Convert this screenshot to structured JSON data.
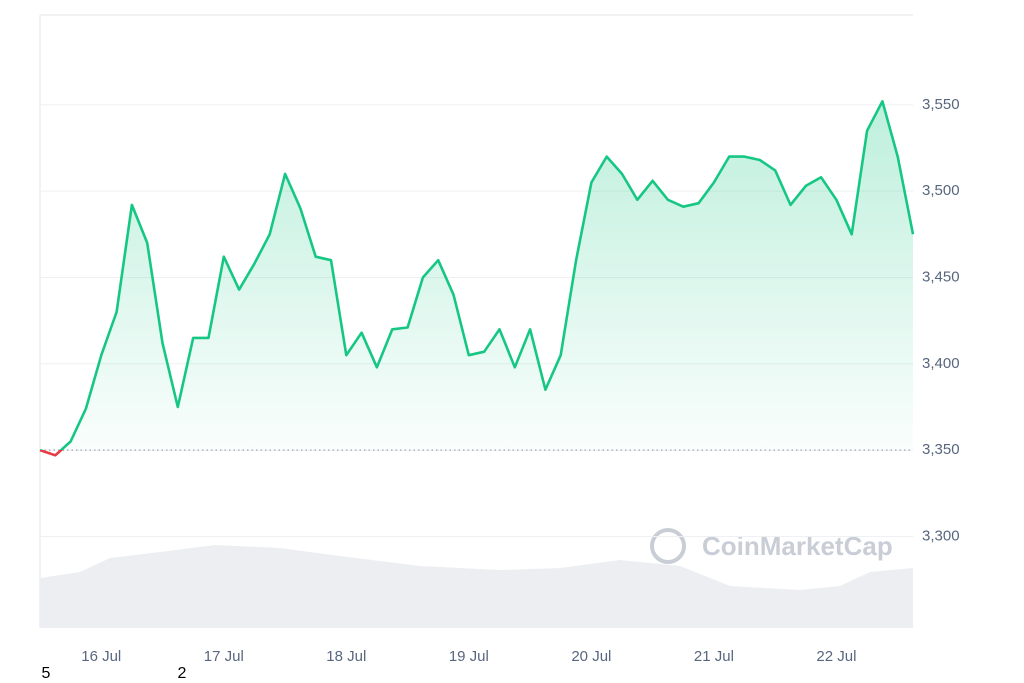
{
  "chart_data": {
    "type": "line",
    "categories": [
      null,
      null,
      null,
      null,
      "16 Jul",
      null,
      null,
      null,
      null,
      null,
      null,
      null,
      "17 Jul",
      null,
      null,
      null,
      null,
      null,
      null,
      null,
      "18 Jul",
      null,
      null,
      null,
      null,
      null,
      null,
      null,
      "19 Jul",
      null,
      null,
      null,
      null,
      null,
      null,
      null,
      "20 Jul",
      null,
      null,
      null,
      null,
      null,
      null,
      null,
      "21 Jul",
      null,
      null,
      null,
      null,
      null,
      null,
      null,
      "22 Jul",
      null,
      null,
      null,
      null,
      null
    ],
    "series": [
      {
        "color": "#16c784",
        "below_color": "#ea3943",
        "values": [
          3350,
          3347,
          3355,
          3374,
          3405,
          3430,
          3492,
          3470,
          3412,
          3375,
          3415,
          3415,
          3462,
          3443,
          3458,
          3475,
          3510,
          3490,
          3462,
          3460,
          3405,
          3418,
          3398,
          3420,
          3421,
          3450,
          3460,
          3440,
          3405,
          3407,
          3420,
          3398,
          3420,
          3385,
          3405,
          3460,
          3505,
          3520,
          3510,
          3495,
          3506,
          3495,
          3491,
          3493,
          3505,
          3520,
          3520,
          3518,
          3512,
          3492,
          3503,
          3508,
          3495,
          3475,
          3535,
          3552,
          3520,
          3475
        ]
      }
    ],
    "baseline": 3350,
    "ylim": [
      3247,
      3602
    ],
    "yticks": [
      {
        "value": 3300,
        "label": "3,300"
      },
      {
        "value": 3350,
        "label": "3,350"
      },
      {
        "value": 3400,
        "label": "3,400"
      },
      {
        "value": 3450,
        "label": "3,450"
      },
      {
        "value": 3500,
        "label": "3,500"
      },
      {
        "value": 3550,
        "label": "3,550"
      }
    ],
    "grid": true,
    "watermark": "CoinMarketCap",
    "footer_marks": [
      "5",
      "2"
    ]
  }
}
